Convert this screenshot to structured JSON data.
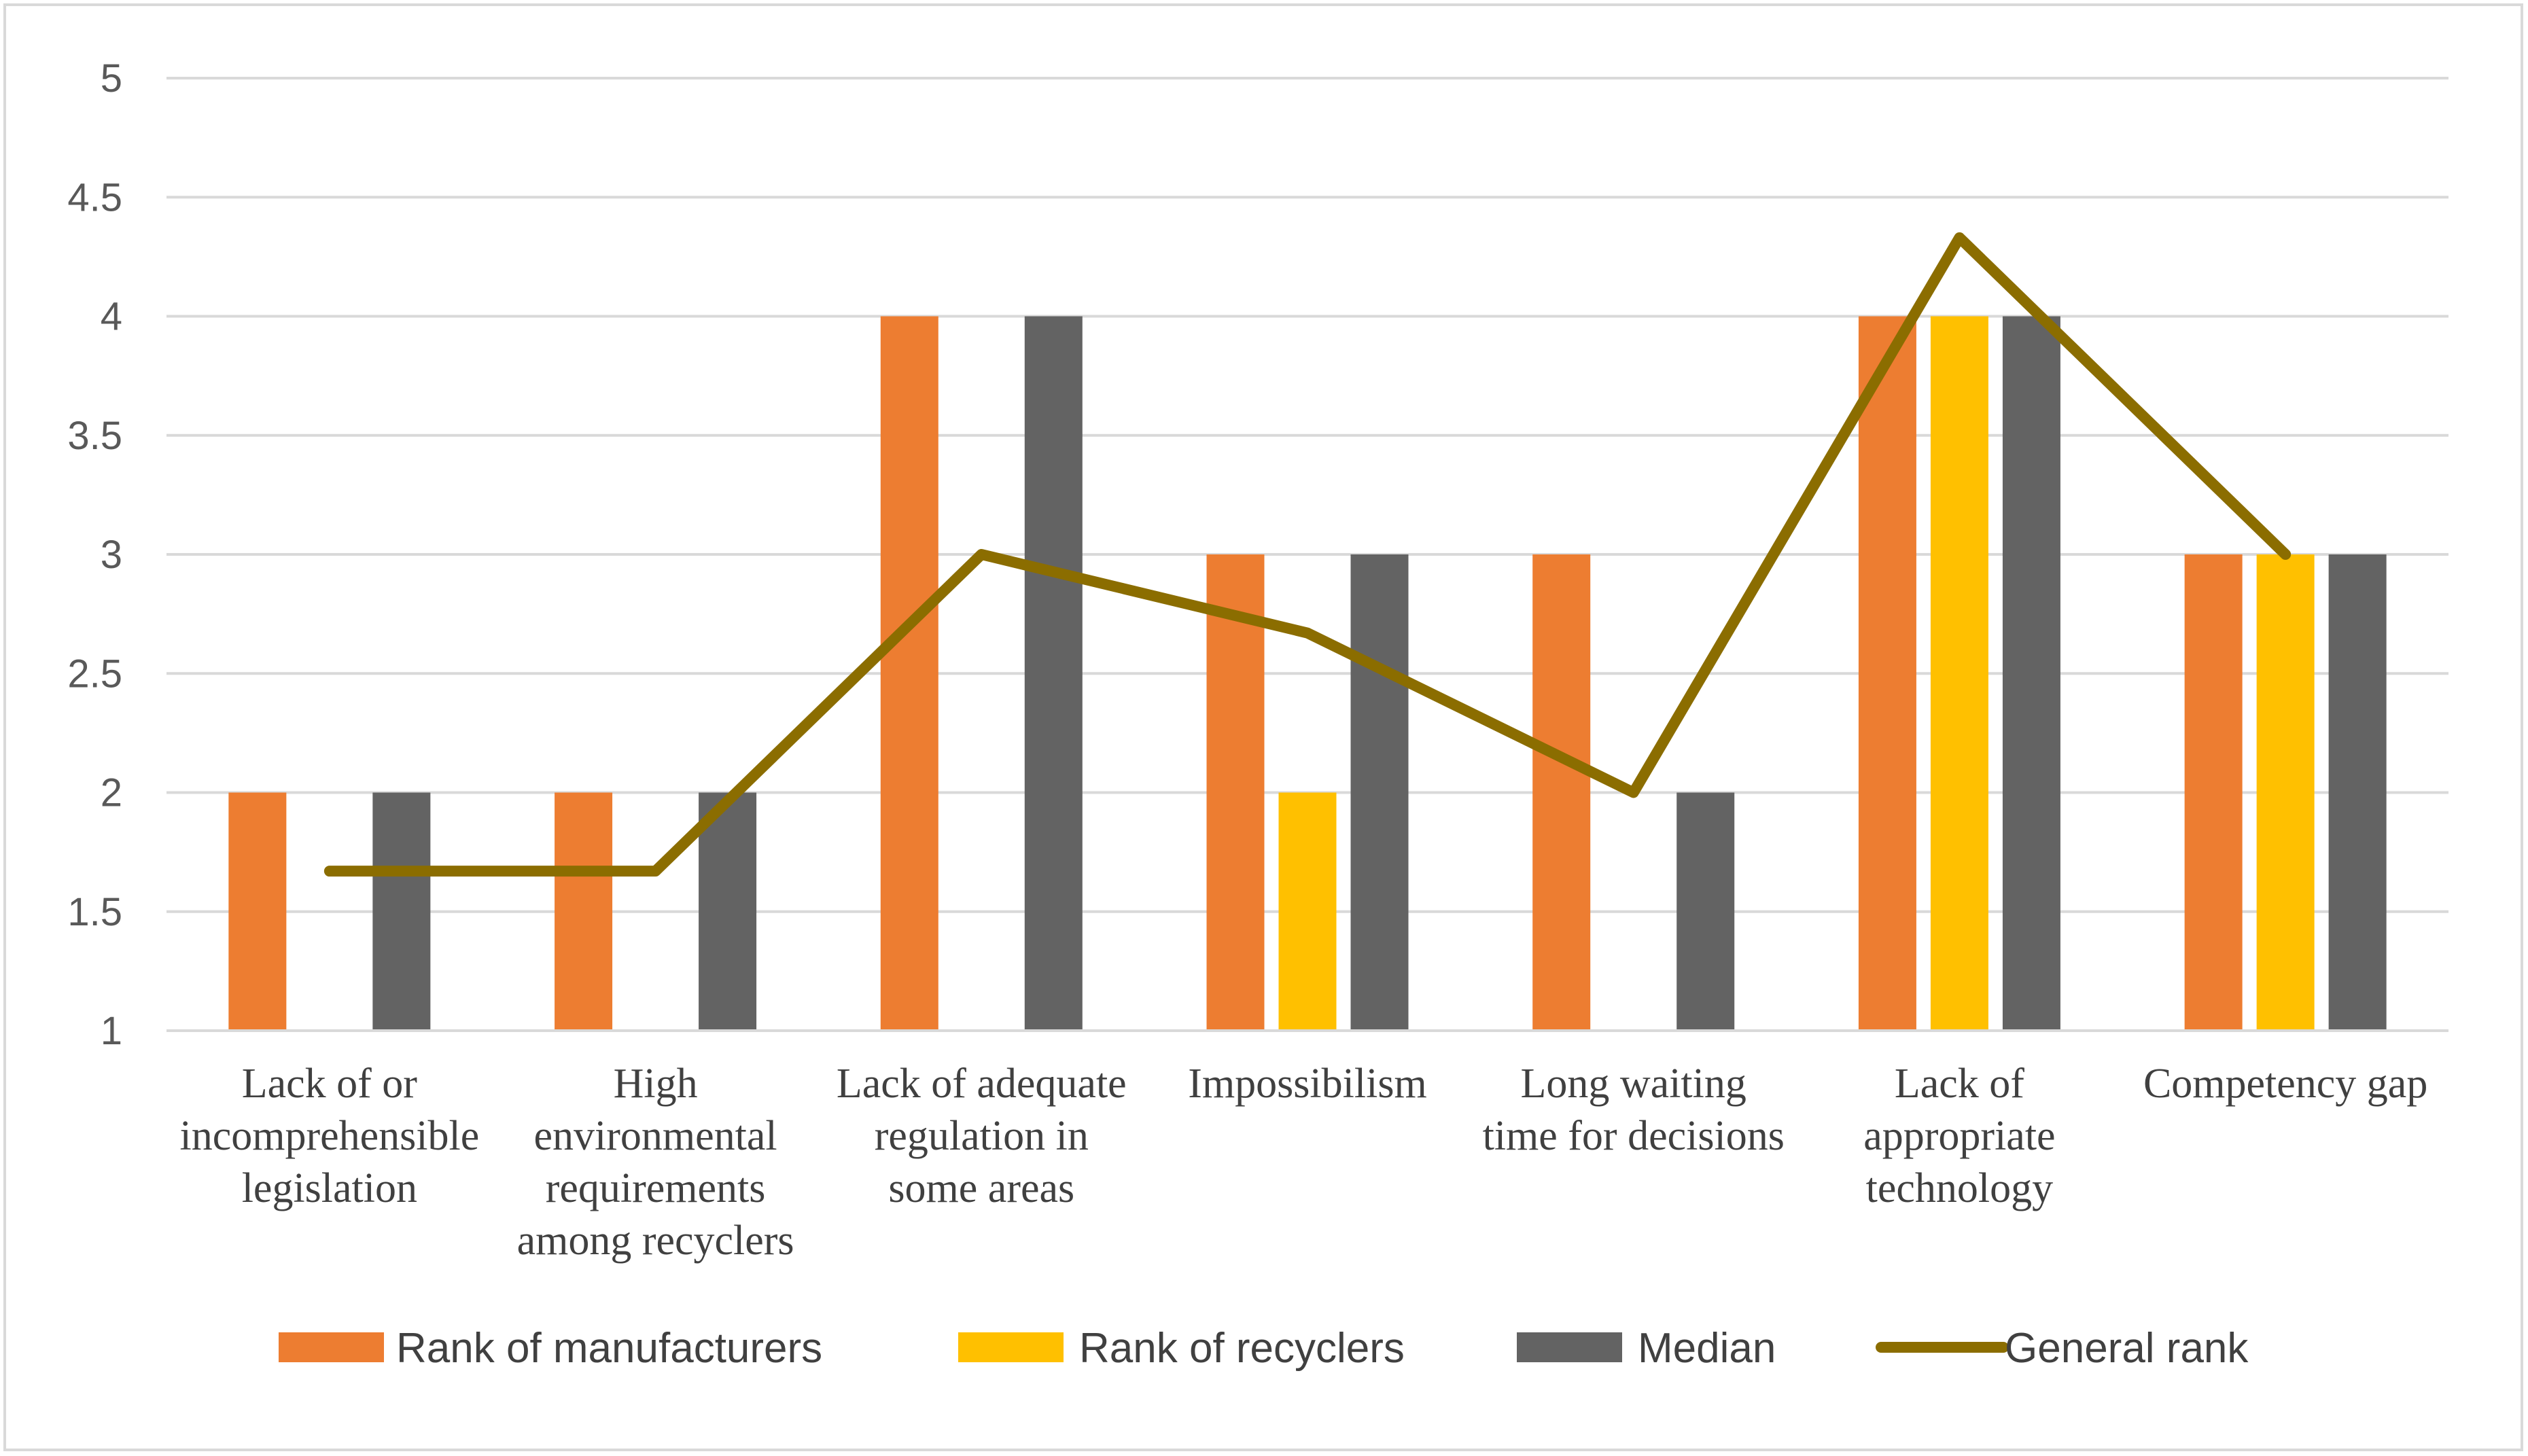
{
  "chart_data": {
    "type": "bar",
    "title": "",
    "xlabel": "",
    "ylabel": "",
    "ylim": [
      1,
      5
    ],
    "yticks": [
      "1",
      "1.5",
      "2",
      "2.5",
      "3",
      "3.5",
      "4",
      "4.5",
      "5"
    ],
    "ytick_values": [
      1,
      1.5,
      2,
      2.5,
      3,
      3.5,
      4,
      4.5,
      5
    ],
    "grid": true,
    "legend_position": "bottom",
    "categories": [
      [
        "Lack of or",
        "incomprehensible",
        "legislation"
      ],
      [
        "High",
        "environmental",
        "requirements",
        "among recyclers"
      ],
      [
        "Lack of adequate",
        "regulation in",
        "some areas"
      ],
      [
        "Impossibilism"
      ],
      [
        "Long waiting",
        "time for decisions"
      ],
      [
        "Lack of",
        "appropriate",
        "technology"
      ],
      [
        "Competency gap"
      ]
    ],
    "series": [
      {
        "name": "Rank of manufacturers",
        "kind": "bar",
        "color": "#ed7d31",
        "values": [
          2,
          2,
          4,
          3,
          3,
          4,
          3
        ]
      },
      {
        "name": "Rank of recyclers",
        "kind": "bar",
        "color": "#ffc000",
        "values": [
          1,
          1,
          1,
          2,
          1,
          4,
          3
        ]
      },
      {
        "name": "Median",
        "kind": "bar",
        "color": "#636363",
        "values": [
          2,
          2,
          4,
          3,
          2,
          4,
          3
        ]
      },
      {
        "name": "General rank",
        "kind": "line",
        "color": "#8b6d00",
        "values": [
          1.67,
          1.67,
          3,
          2.67,
          2,
          4.33,
          3
        ]
      }
    ]
  }
}
